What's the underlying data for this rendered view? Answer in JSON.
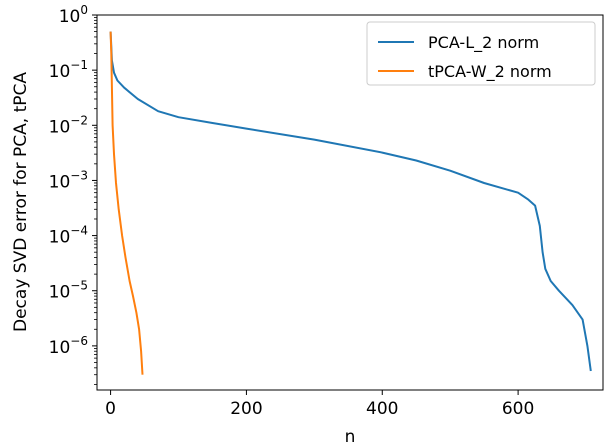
{
  "chart_data": {
    "type": "line",
    "title": "",
    "xlabel": "n",
    "ylabel": "Decay SVD error for PCA, tPCA",
    "xlim": [
      -20,
      725
    ],
    "ylim_log10": [
      -6.8,
      0
    ],
    "yscale": "log",
    "grid": false,
    "legend_position": "top-right",
    "x_ticks": [
      0,
      200,
      400,
      600
    ],
    "x_tick_labels": [
      "0",
      "200",
      "400",
      "600"
    ],
    "y_ticks_log10": [
      0,
      -1,
      -2,
      -3,
      -4,
      -5,
      -6
    ],
    "y_tick_labels": [
      {
        "base": "10",
        "exp": "0"
      },
      {
        "base": "10",
        "exp": "−1"
      },
      {
        "base": "10",
        "exp": "−2"
      },
      {
        "base": "10",
        "exp": "−3"
      },
      {
        "base": "10",
        "exp": "−4"
      },
      {
        "base": "10",
        "exp": "−5"
      },
      {
        "base": "10",
        "exp": "−6"
      }
    ],
    "series": [
      {
        "name": "PCA-L_2 norm",
        "color": "#1f77b4",
        "x": [
          0,
          2,
          5,
          10,
          20,
          40,
          70,
          100,
          150,
          200,
          300,
          400,
          450,
          500,
          550,
          600,
          615,
          625,
          632,
          636,
          640,
          648,
          660,
          680,
          695,
          702,
          707
        ],
        "y": [
          0.5,
          0.15,
          0.09,
          0.065,
          0.048,
          0.03,
          0.018,
          0.014,
          0.011,
          0.0087,
          0.0055,
          0.0032,
          0.0023,
          0.0015,
          0.0009,
          0.0006,
          0.00045,
          0.00035,
          0.00015,
          5e-05,
          2.5e-05,
          1.5e-05,
          1e-05,
          5.5e-06,
          3e-06,
          1e-06,
          3.5e-07
        ]
      },
      {
        "name": "tPCA-W_2 norm",
        "color": "#ff7f0e",
        "x": [
          0,
          1,
          2,
          3,
          5,
          8,
          12,
          17,
          22,
          28,
          33,
          38,
          42,
          45,
          47
        ],
        "y": [
          0.5,
          0.2,
          0.05,
          0.01,
          0.003,
          0.0009,
          0.0003,
          0.0001,
          4e-05,
          1.5e-05,
          8e-06,
          4e-06,
          2e-06,
          8e-07,
          3e-07
        ]
      }
    ]
  }
}
